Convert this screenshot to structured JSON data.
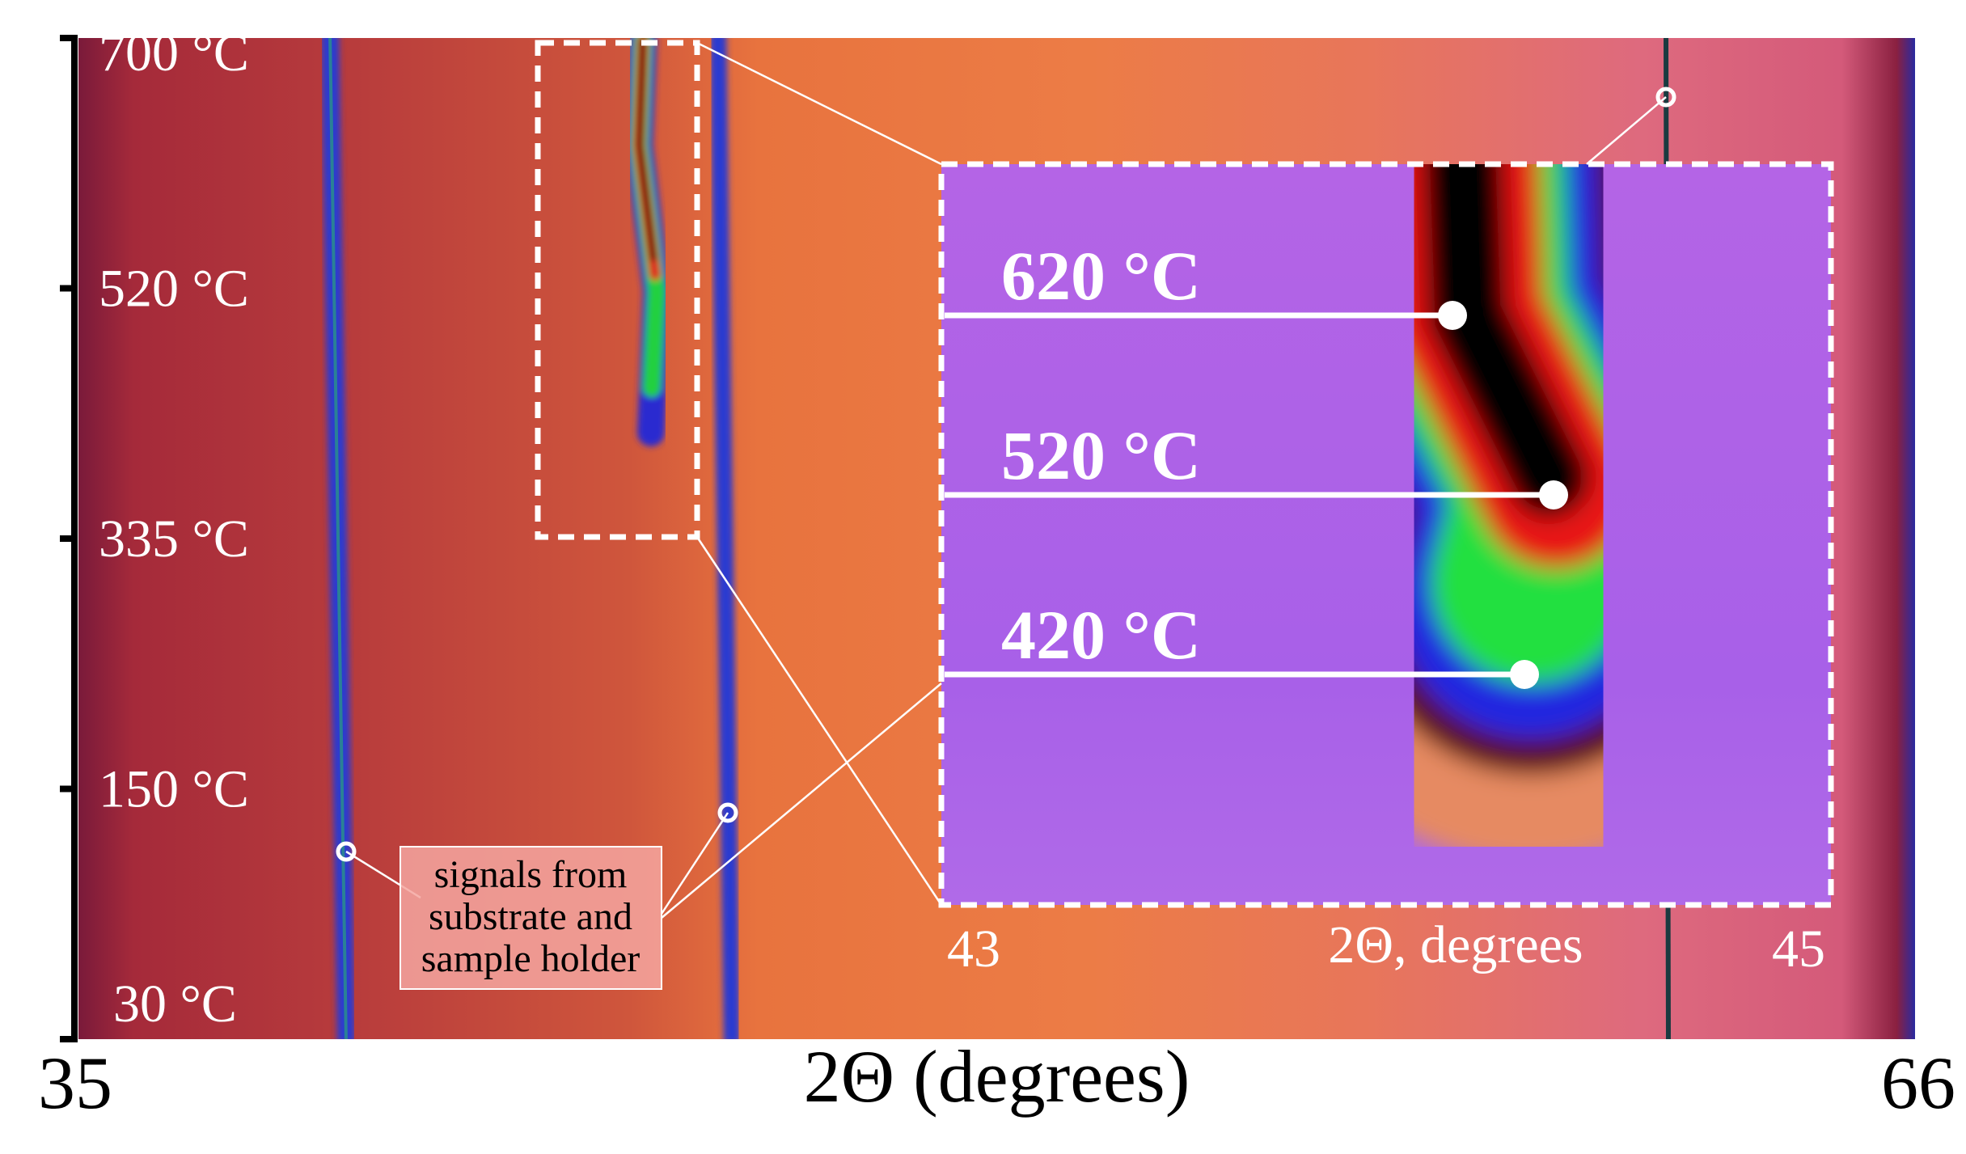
{
  "chart_data": {
    "type": "heatmap",
    "xlabel": "2Θ (degrees)",
    "xlim": [
      35,
      66
    ],
    "xticks": [
      35,
      66
    ],
    "temperature_labels": [
      "700 °C",
      "520 °C",
      "335 °C",
      "150 °C",
      "30 °C"
    ],
    "inset": {
      "xlabel": "2Θ, degrees",
      "xlim": [
        43,
        45
      ],
      "xticks": [
        43,
        45
      ],
      "annotations": [
        "620 °C",
        "520 °C",
        "420 °C"
      ]
    },
    "callout_lines": [
      "signals from",
      "substrate and",
      "sample holder"
    ]
  }
}
